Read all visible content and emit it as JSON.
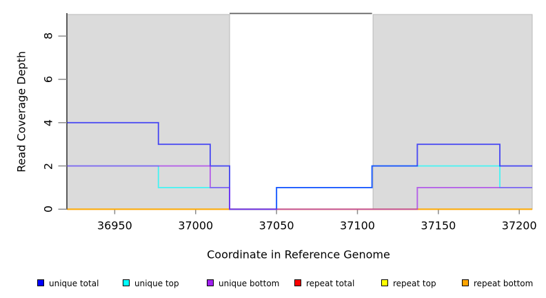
{
  "chart_data": {
    "type": "line",
    "subtype": "step",
    "title": "",
    "xlabel": "Coordinate in Reference Genome",
    "ylabel": "Read Coverage Depth",
    "xlim": [
      36920,
      37208
    ],
    "ylim": [
      0,
      9
    ],
    "x_ticks": [
      36950,
      37000,
      37050,
      37100,
      37150,
      37200
    ],
    "y_ticks": [
      0,
      2,
      4,
      6,
      8
    ],
    "grid": false,
    "legend_position": "bottom-horizontal",
    "shaded_regions": [
      {
        "x0": 36920,
        "x1": 37021,
        "color": "#dbdbdb"
      },
      {
        "x0": 37109,
        "x1": 37208,
        "color": "#dbdbdb"
      }
    ],
    "top_gap_line": {
      "x0": 37021,
      "x1": 37109,
      "y": 9,
      "color": "#5f5f5f"
    },
    "series": [
      {
        "name": "repeat total",
        "color": "#ff0000",
        "steps": [
          [
            36920,
            0
          ],
          [
            37208,
            0
          ]
        ]
      },
      {
        "name": "repeat top",
        "color": "#ffff00",
        "steps": [
          [
            36920,
            0
          ],
          [
            37208,
            0
          ]
        ]
      },
      {
        "name": "repeat bottom",
        "color": "#ffa500",
        "steps": [
          [
            36920,
            0
          ],
          [
            37208,
            0
          ]
        ]
      },
      {
        "name": "unique top",
        "color": "#00ffff",
        "steps": [
          [
            36920,
            2
          ],
          [
            36977,
            1
          ],
          [
            37021,
            0
          ],
          [
            37050,
            1
          ],
          [
            37109,
            2
          ],
          [
            37188,
            1
          ],
          [
            37208,
            1
          ]
        ]
      },
      {
        "name": "unique total",
        "color": "#0000ff",
        "steps": [
          [
            36920,
            4
          ],
          [
            36977,
            3
          ],
          [
            37009,
            2
          ],
          [
            37021,
            0
          ],
          [
            37050,
            1
          ],
          [
            37109,
            2
          ],
          [
            37137,
            3
          ],
          [
            37188,
            2
          ],
          [
            37208,
            2
          ]
        ]
      },
      {
        "name": "unique bottom",
        "color": "#a020f0",
        "steps": [
          [
            36920,
            2
          ],
          [
            37009,
            1
          ],
          [
            37021,
            0
          ],
          [
            37137,
            1
          ],
          [
            37208,
            1
          ]
        ]
      }
    ]
  },
  "legend": {
    "items": [
      {
        "label": "unique total",
        "color": "#0000ff"
      },
      {
        "label": "unique top",
        "color": "#00ffff"
      },
      {
        "label": "unique bottom",
        "color": "#a020f0"
      },
      {
        "label": "repeat total",
        "color": "#ff0000"
      },
      {
        "label": "repeat top",
        "color": "#ffff00"
      },
      {
        "label": "repeat bottom",
        "color": "#ffa500"
      }
    ]
  },
  "axis_colors": {
    "axis_line": "#3a3a3a",
    "tick_mark": "#8a8a8a",
    "text": "#000000"
  }
}
